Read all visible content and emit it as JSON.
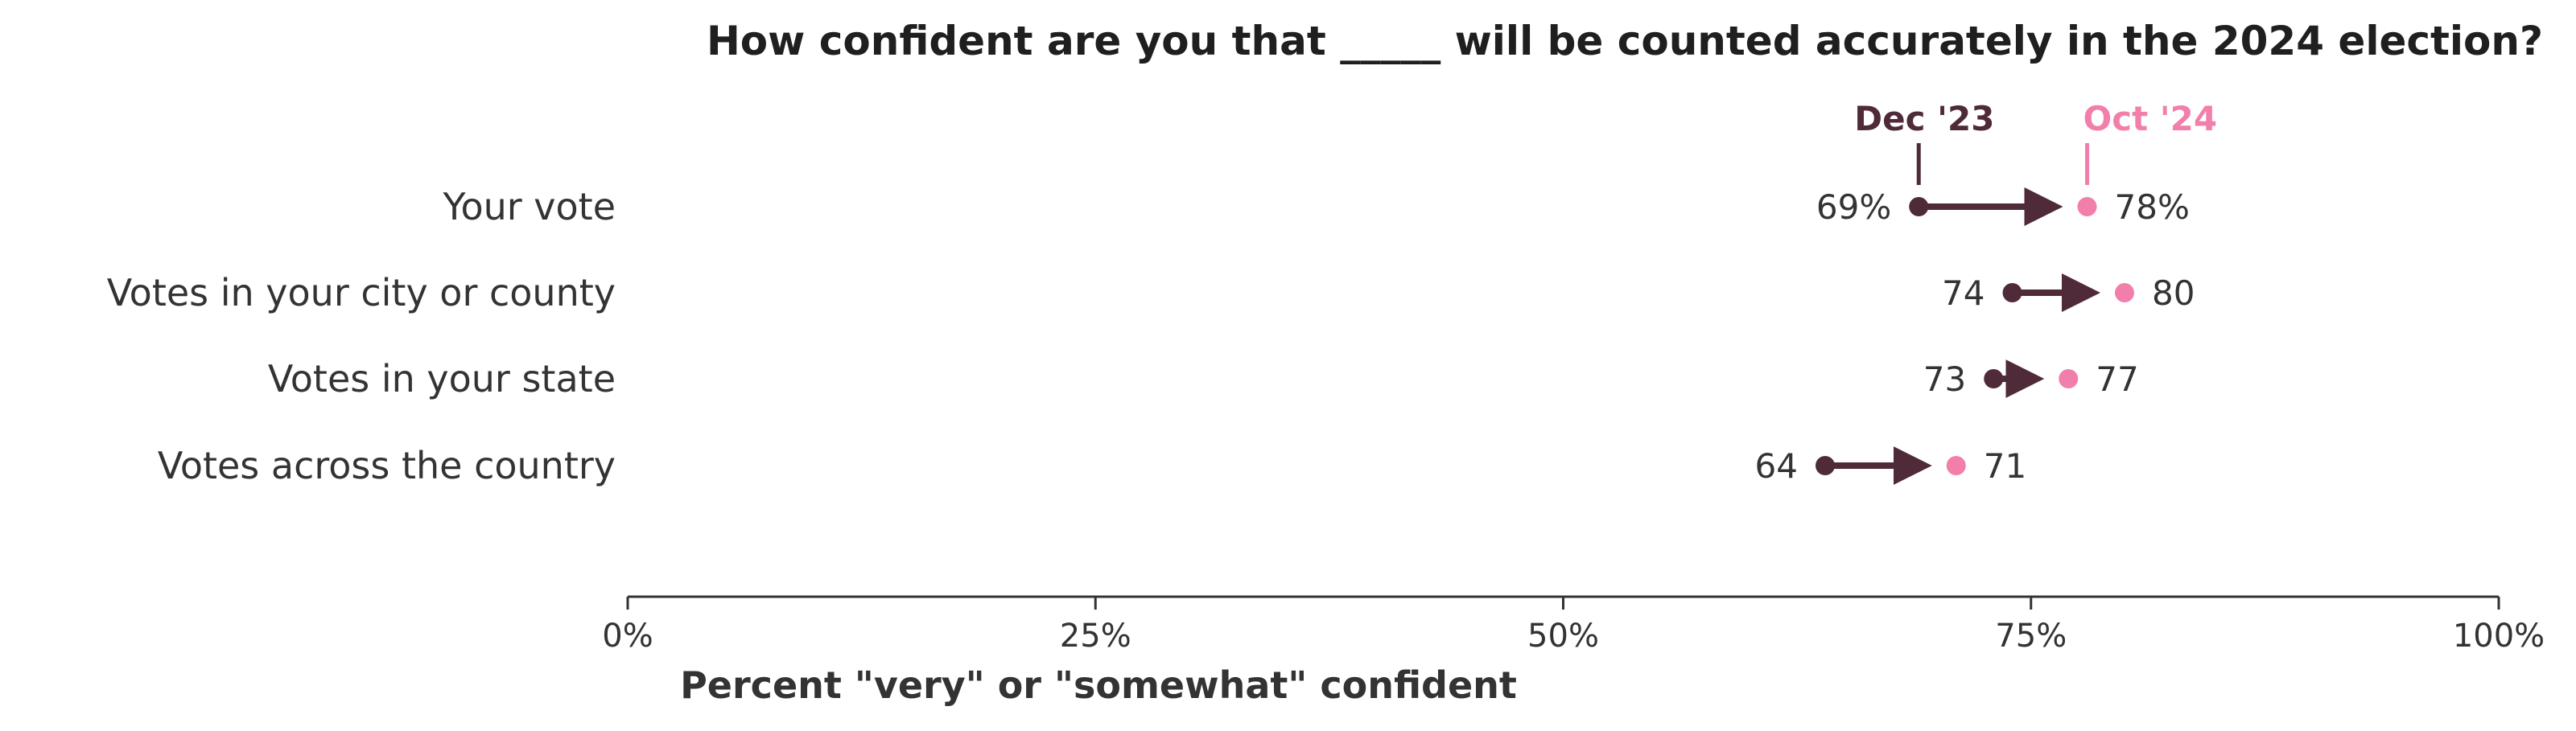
{
  "chart_data": {
    "type": "dumbbell",
    "title": "How confident are you that _____ will be counted accurately in the 2024 election?",
    "xlabel": "Percent \"very\" or \"somewhat\" confident",
    "xlim": [
      0,
      100
    ],
    "xticks": [
      "0%",
      "25%",
      "50%",
      "75%",
      "100%"
    ],
    "categories": [
      "Your vote",
      "Votes in your city or county",
      "Votes in your state",
      "Votes across the country"
    ],
    "series": [
      {
        "name": "Dec '23",
        "values": [
          69,
          74,
          73,
          64
        ],
        "labels": [
          "69%",
          "74",
          "73",
          "64"
        ]
      },
      {
        "name": "Oct '24",
        "values": [
          78,
          80,
          77,
          71
        ],
        "labels": [
          "78%",
          "80",
          "77",
          "71"
        ]
      }
    ],
    "grid": false,
    "legend_placement": "above first row"
  },
  "colors": {
    "start": "#4f2a38",
    "end": "#f27fab",
    "axis": "#333333"
  }
}
